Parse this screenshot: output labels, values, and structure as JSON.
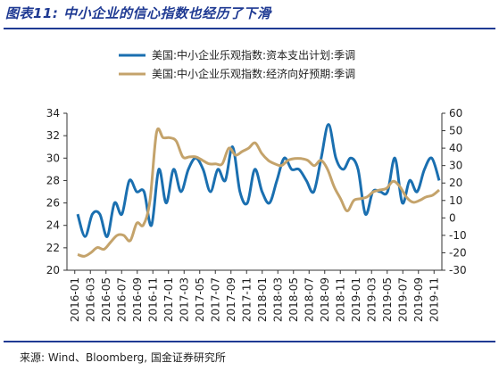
{
  "header": {
    "title": "图表11: 中小企业的信心指数也经历了下滑"
  },
  "footer": {
    "source": "来源: Wind、Bloomberg, 国金证券研究所"
  },
  "chart_data": {
    "type": "line",
    "title": "",
    "xlabel": "",
    "ylabel": "",
    "x_tick_labels": [
      "2016-01",
      "2016-03",
      "2016-05",
      "2016-07",
      "2016-09",
      "2016-11",
      "2017-01",
      "2017-03",
      "2017-05",
      "2017-07",
      "2017-09",
      "2017-11",
      "2018-01",
      "2018-03",
      "2018-05",
      "2018-07",
      "2018-09",
      "2018-11",
      "2019-01",
      "2019-03",
      "2019-05",
      "2019-07",
      "2019-09",
      "2019-11"
    ],
    "y_left": {
      "min": 20,
      "max": 34,
      "ticks": [
        20,
        22,
        24,
        26,
        28,
        30,
        32,
        34
      ]
    },
    "y_right": {
      "min": -30,
      "max": 60,
      "ticks": [
        -30,
        -20,
        -10,
        0,
        10,
        20,
        30,
        40,
        50,
        60
      ]
    },
    "legend_position": "top-right",
    "series": [
      {
        "name": "美国:中小企业乐观指数:资本支出计划:季调",
        "axis": "left",
        "color": "#1a6fb0",
        "values": [
          25,
          23,
          25,
          25,
          23,
          26,
          25,
          28,
          27,
          27,
          24,
          29,
          26,
          29,
          27,
          29,
          30,
          29,
          27,
          29,
          28,
          31,
          27,
          26,
          29,
          27,
          26,
          28,
          30,
          29,
          29,
          28,
          27,
          30,
          33,
          30,
          29,
          30,
          29,
          25,
          27,
          27,
          27,
          30,
          26,
          28,
          27,
          29,
          30,
          28
        ]
      },
      {
        "name": "美国:中小企业乐观指数:经济向好预期:季调",
        "axis": "right",
        "color": "#c4a36b",
        "values": [
          -21,
          -22,
          -20,
          -17,
          -18,
          -14,
          -10,
          -10,
          -13,
          -3,
          -4,
          10,
          49,
          46,
          46,
          44,
          35,
          35,
          35,
          33,
          31,
          31,
          31,
          40,
          36,
          38,
          40,
          43,
          37,
          33,
          31,
          30,
          33,
          34,
          34,
          33,
          30,
          33,
          28,
          18,
          11,
          4,
          10,
          11,
          12,
          15,
          16,
          17,
          21,
          18,
          12,
          9,
          10,
          12,
          13,
          16
        ]
      }
    ]
  }
}
